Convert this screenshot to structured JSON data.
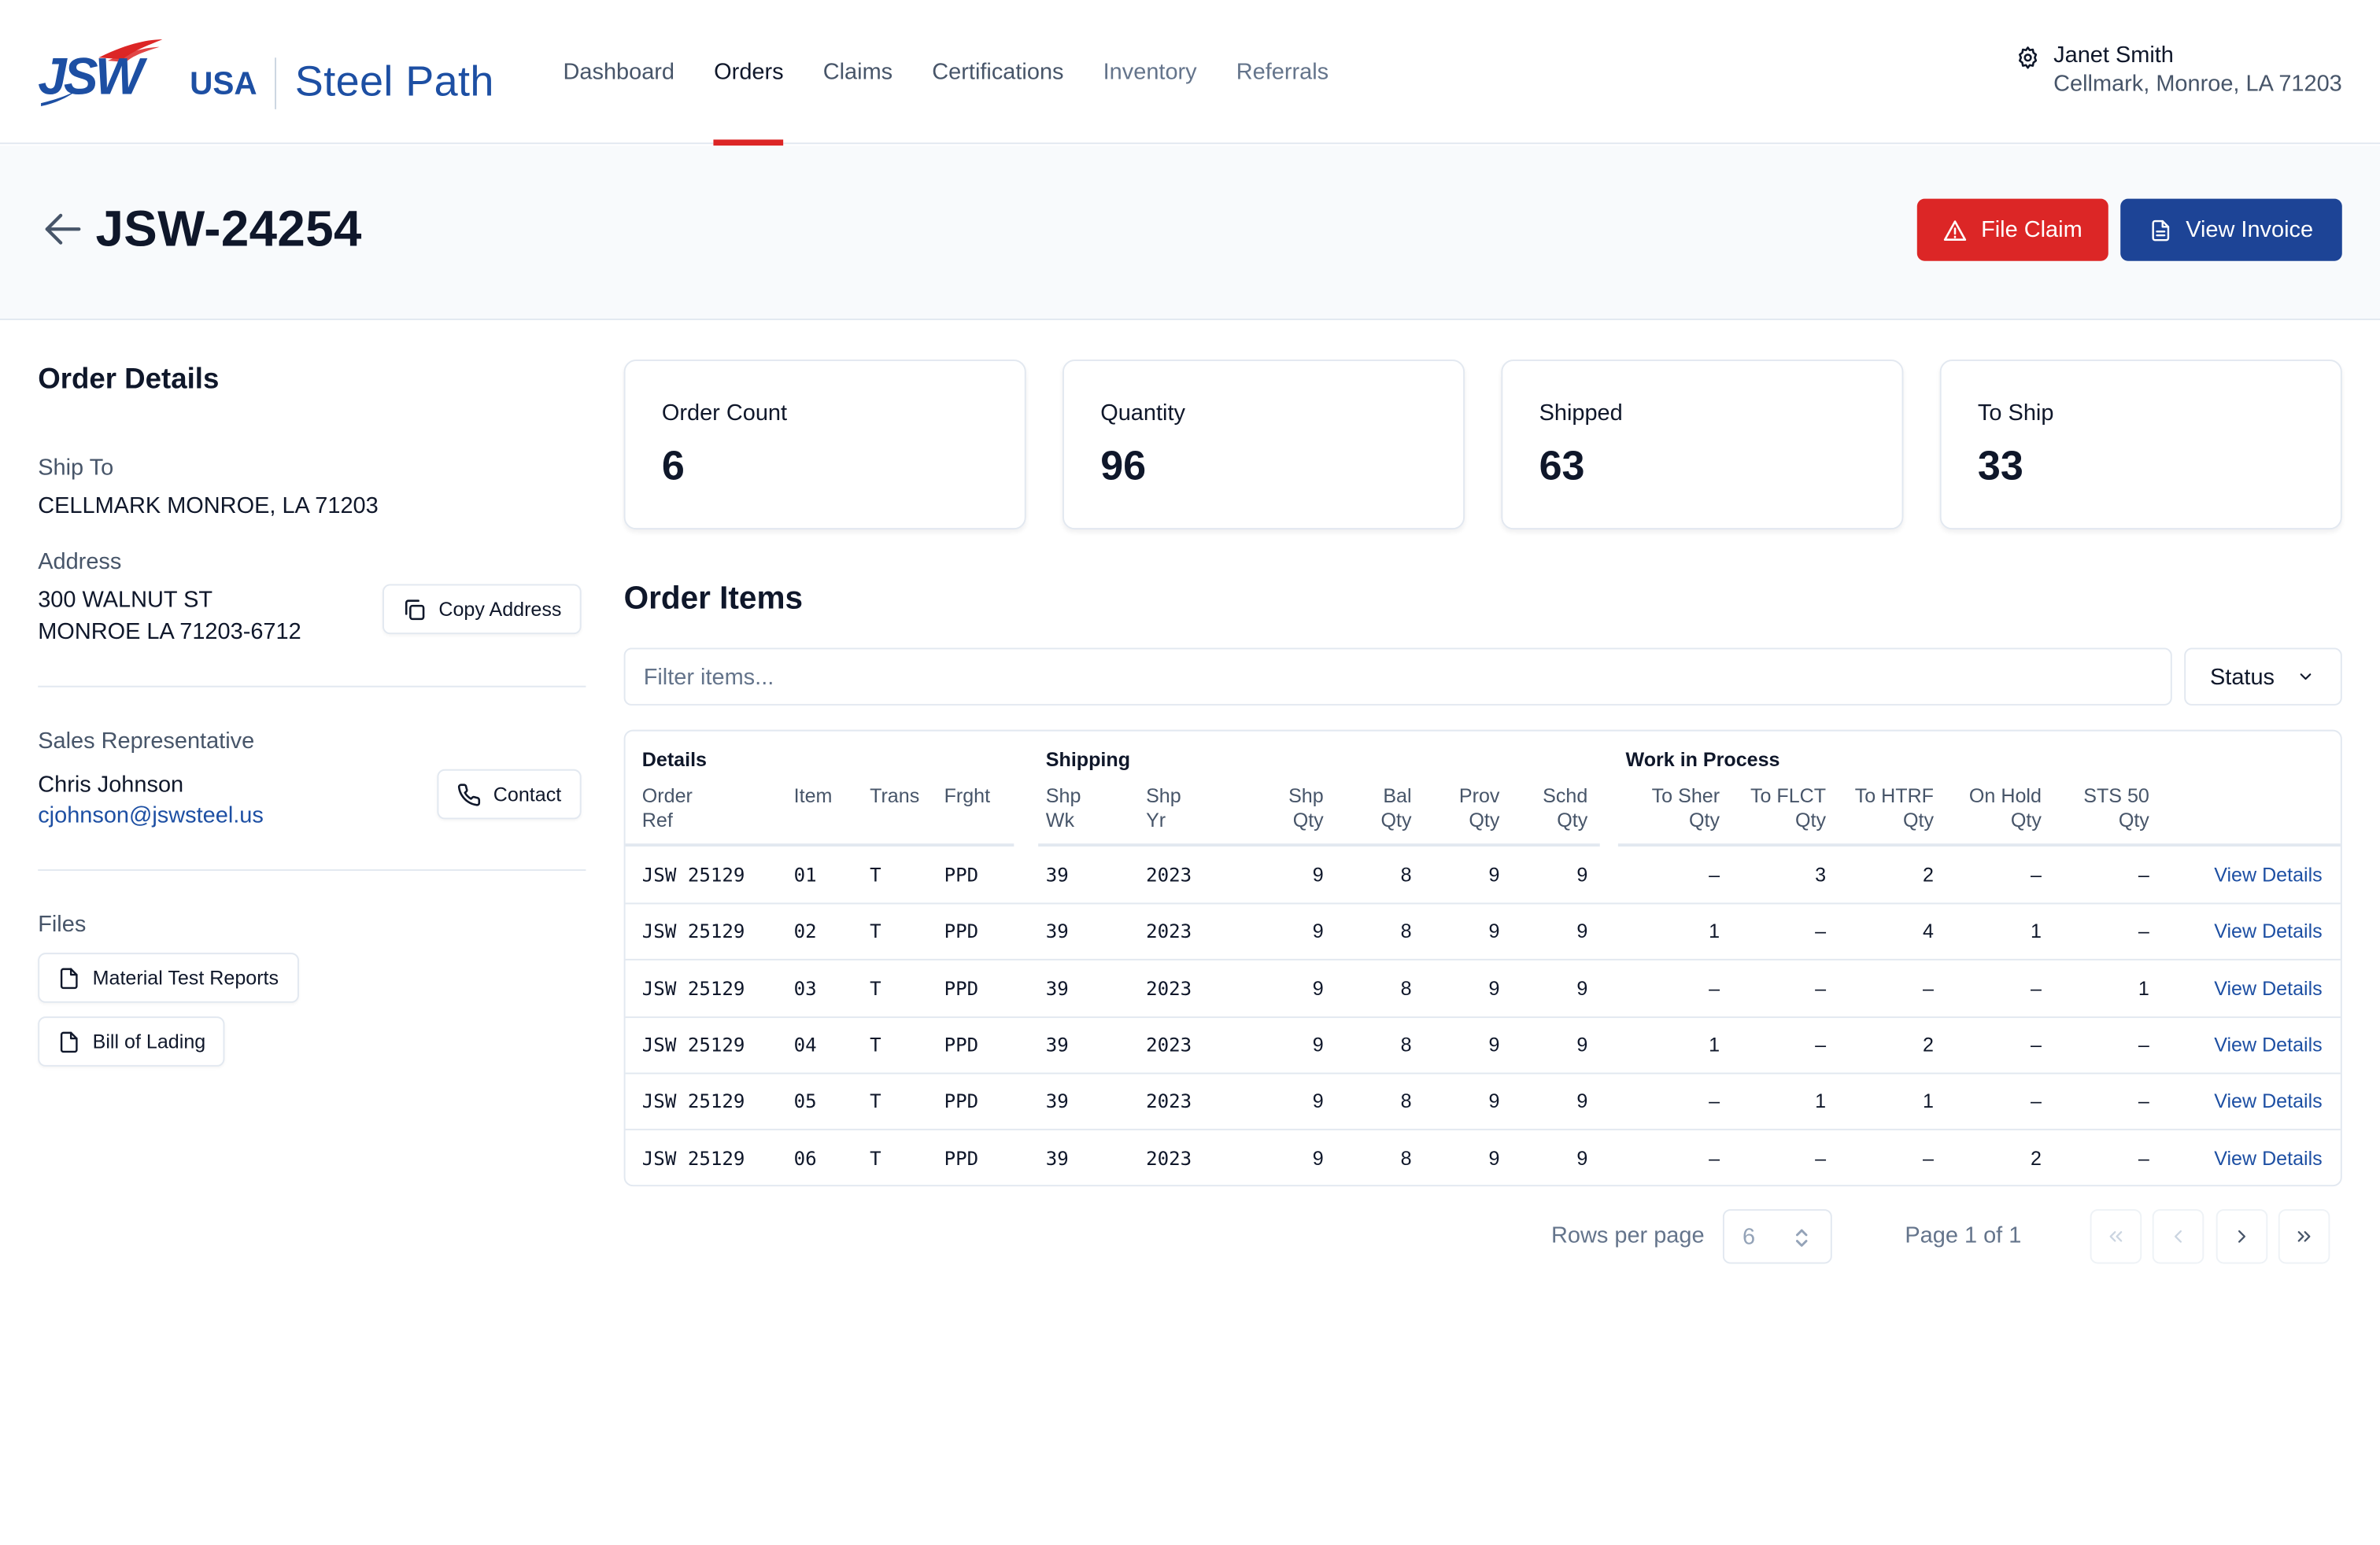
{
  "brand": {
    "logo_text": "JSW",
    "logo_region": "USA",
    "app_name": "Steel Path"
  },
  "nav": [
    {
      "label": "Dashboard",
      "active": false
    },
    {
      "label": "Orders",
      "active": true
    },
    {
      "label": "Claims",
      "active": false
    },
    {
      "label": "Certifications",
      "active": false
    },
    {
      "label": "Inventory",
      "active": false
    },
    {
      "label": "Referrals",
      "active": false
    }
  ],
  "user": {
    "name": "Janet Smith",
    "location": "Cellmark, Monroe, LA 71203",
    "icon": "gear-icon"
  },
  "page": {
    "order_id": "JSW-24254",
    "file_claim_label": "File Claim",
    "view_invoice_label": "View Invoice",
    "accent_red": "#dc2626",
    "accent_blue": "#1d4496"
  },
  "order_details": {
    "title": "Order Details",
    "ship_to_label": "Ship To",
    "ship_to": "CELLMARK MONROE, LA 71203",
    "address_label": "Address",
    "address_line1": "300 WALNUT ST",
    "address_line2": "MONROE LA 71203-6712",
    "copy_address_label": "Copy Address",
    "sales_rep_label": "Sales Representative",
    "sales_rep_name": "Chris Johnson",
    "sales_rep_email": "cjohnson@jswsteel.us",
    "contact_label": "Contact",
    "files_label": "Files",
    "files": [
      "Material Test Reports",
      "Bill of Lading"
    ]
  },
  "stats": [
    {
      "label": "Order Count",
      "value": "6"
    },
    {
      "label": "Quantity",
      "value": "96"
    },
    {
      "label": "Shipped",
      "value": "63"
    },
    {
      "label": "To Ship",
      "value": "33"
    }
  ],
  "order_items": {
    "title": "Order Items",
    "filter_placeholder": "Filter items...",
    "status_label": "Status",
    "groups": {
      "details": "Details",
      "shipping": "Shipping",
      "wip": "Work in Process"
    },
    "columns": {
      "order_ref": [
        "Order",
        "Ref"
      ],
      "item": "Item",
      "trans": "Trans",
      "frght": "Frght",
      "shp_wk": [
        "Shp",
        "Wk"
      ],
      "shp_yr": [
        "Shp",
        "Yr"
      ],
      "shp_qty": [
        "Shp",
        "Qty"
      ],
      "bal_qty": [
        "Bal",
        "Qty"
      ],
      "prov_qty": [
        "Prov",
        "Qty"
      ],
      "schd_qty": [
        "Schd",
        "Qty"
      ],
      "to_sher_qty": [
        "To Sher",
        "Qty"
      ],
      "to_flct_qty": [
        "To FLCT",
        "Qty"
      ],
      "to_htrf_qty": [
        "To HTRF",
        "Qty"
      ],
      "on_hold_qty": [
        "On Hold",
        "Qty"
      ],
      "sts50_qty": [
        "STS 50",
        "Qty"
      ]
    },
    "view_details_label": "View Details",
    "rows": [
      {
        "order_ref": "JSW 25129",
        "item": "01",
        "trans": "T",
        "frght": "PPD",
        "shp_wk": "39",
        "shp_yr": "2023",
        "shp_qty": "9",
        "bal_qty": "8",
        "prov_qty": "9",
        "schd_qty": "9",
        "to_sher": "–",
        "to_flct": "3",
        "to_htrf": "2",
        "on_hold": "–",
        "sts50": "–"
      },
      {
        "order_ref": "JSW 25129",
        "item": "02",
        "trans": "T",
        "frght": "PPD",
        "shp_wk": "39",
        "shp_yr": "2023",
        "shp_qty": "9",
        "bal_qty": "8",
        "prov_qty": "9",
        "schd_qty": "9",
        "to_sher": "1",
        "to_flct": "–",
        "to_htrf": "4",
        "on_hold": "1",
        "sts50": "–"
      },
      {
        "order_ref": "JSW 25129",
        "item": "03",
        "trans": "T",
        "frght": "PPD",
        "shp_wk": "39",
        "shp_yr": "2023",
        "shp_qty": "9",
        "bal_qty": "8",
        "prov_qty": "9",
        "schd_qty": "9",
        "to_sher": "–",
        "to_flct": "–",
        "to_htrf": "–",
        "on_hold": "–",
        "sts50": "1"
      },
      {
        "order_ref": "JSW 25129",
        "item": "04",
        "trans": "T",
        "frght": "PPD",
        "shp_wk": "39",
        "shp_yr": "2023",
        "shp_qty": "9",
        "bal_qty": "8",
        "prov_qty": "9",
        "schd_qty": "9",
        "to_sher": "1",
        "to_flct": "–",
        "to_htrf": "2",
        "on_hold": "–",
        "sts50": "–"
      },
      {
        "order_ref": "JSW 25129",
        "item": "05",
        "trans": "T",
        "frght": "PPD",
        "shp_wk": "39",
        "shp_yr": "2023",
        "shp_qty": "9",
        "bal_qty": "8",
        "prov_qty": "9",
        "schd_qty": "9",
        "to_sher": "–",
        "to_flct": "1",
        "to_htrf": "1",
        "on_hold": "–",
        "sts50": "–"
      },
      {
        "order_ref": "JSW 25129",
        "item": "06",
        "trans": "T",
        "frght": "PPD",
        "shp_wk": "39",
        "shp_yr": "2023",
        "shp_qty": "9",
        "bal_qty": "8",
        "prov_qty": "9",
        "schd_qty": "9",
        "to_sher": "–",
        "to_flct": "–",
        "to_htrf": "–",
        "on_hold": "2",
        "sts50": "–"
      }
    ]
  },
  "pagination": {
    "rows_per_page_label": "Rows per page",
    "rows_per_page": "6",
    "page_text": "Page 1 of 1"
  }
}
